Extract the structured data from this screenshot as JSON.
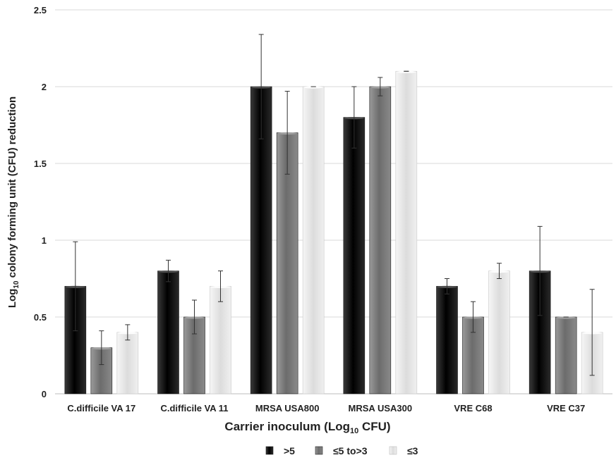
{
  "chart_data": {
    "type": "bar",
    "title": "",
    "xlabel": {
      "main": "Carrier inoculum  (Log",
      "sub": "10",
      "tail": " CFU)"
    },
    "ylabel": {
      "main": "Log",
      "sub": "10",
      "tail": " colony forming unit (CFU) reduction"
    },
    "ylim": [
      0,
      2.5
    ],
    "yticks": [
      "0",
      "0.5",
      "1",
      "1.5",
      "2",
      "2.5"
    ],
    "grid": true,
    "legend_position": "bottom-center",
    "categories": [
      "C.difficile VA 17",
      "C.difficile VA 11",
      "MRSA USA800",
      "MRSA USA300",
      "VRE C68",
      "VRE C37"
    ],
    "series": [
      {
        "name": ">5",
        "color": "#111111",
        "values": [
          0.7,
          0.8,
          2.0,
          1.8,
          0.7,
          0.8
        ],
        "errors": [
          0.29,
          0.07,
          0.34,
          0.2,
          0.05,
          0.29
        ]
      },
      {
        "name": "≤5 to>3",
        "color": "#7a7a7a",
        "values": [
          0.3,
          0.5,
          1.7,
          2.0,
          0.5,
          0.5
        ],
        "errors": [
          0.11,
          0.11,
          0.27,
          0.06,
          0.1,
          0.0
        ]
      },
      {
        "name": "≤3",
        "color": "#e3e3e3",
        "values": [
          0.4,
          0.7,
          2.0,
          2.1,
          0.8,
          0.4
        ],
        "errors": [
          0.05,
          0.1,
          0.0,
          0.0,
          0.05,
          0.28
        ]
      }
    ]
  }
}
